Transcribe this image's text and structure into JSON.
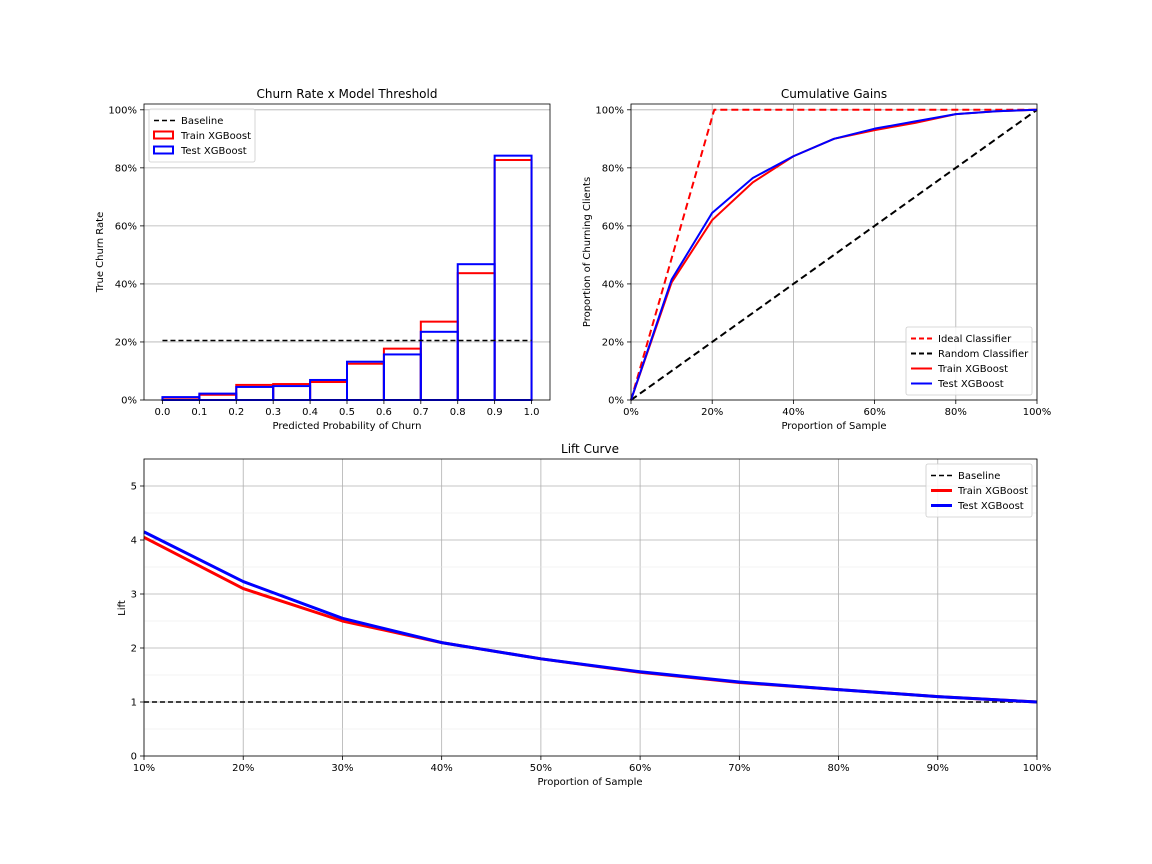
{
  "chart_data": [
    {
      "id": "churn-rate",
      "type": "bar",
      "title": "Churn Rate x Model Threshold",
      "xlabel": "Predicted Probability of Churn",
      "ylabel": "True Churn Rate",
      "xlim": [
        -0.05,
        1.05
      ],
      "ylim": [
        0,
        1.02
      ],
      "x_ticks": [
        0.0,
        0.1,
        0.2,
        0.3,
        0.4,
        0.5,
        0.6,
        0.7,
        0.8,
        0.9,
        1.0
      ],
      "x_tick_labels": [
        "0.0",
        "0.1",
        "0.2",
        "0.3",
        "0.4",
        "0.5",
        "0.6",
        "0.7",
        "0.8",
        "0.9",
        "1.0"
      ],
      "y_ticks": [
        0,
        0.2,
        0.4,
        0.6,
        0.8,
        1.0
      ],
      "y_tick_labels": [
        "0%",
        "20%",
        "40%",
        "60%",
        "80%",
        "100%"
      ],
      "grid": "y",
      "legend_position": "top-left",
      "bin_edges": [
        0.0,
        0.1,
        0.2,
        0.3,
        0.4,
        0.5,
        0.6,
        0.7,
        0.8,
        0.9,
        1.0
      ],
      "baseline": {
        "name": "Baseline",
        "value": 0.205,
        "color": "#000000",
        "style": "dashed"
      },
      "series": [
        {
          "name": "Train XGBoost",
          "color": "#ff0000",
          "values": [
            0.008,
            0.018,
            0.052,
            0.055,
            0.062,
            0.125,
            0.177,
            0.27,
            0.437,
            0.827
          ]
        },
        {
          "name": "Test XGBoost",
          "color": "#0000ff",
          "values": [
            0.01,
            0.022,
            0.045,
            0.048,
            0.069,
            0.132,
            0.157,
            0.235,
            0.468,
            0.842
          ]
        }
      ]
    },
    {
      "id": "cumulative-gains",
      "type": "line",
      "title": "Cumulative Gains",
      "xlabel": "Proportion of Sample",
      "ylabel": "Proportion of Churning Clients",
      "xlim": [
        0,
        1
      ],
      "ylim": [
        0,
        1.02
      ],
      "x_ticks": [
        0,
        0.2,
        0.4,
        0.6,
        0.8,
        1.0
      ],
      "x_tick_labels": [
        "0%",
        "20%",
        "40%",
        "60%",
        "80%",
        "100%"
      ],
      "y_ticks": [
        0,
        0.2,
        0.4,
        0.6,
        0.8,
        1.0
      ],
      "y_tick_labels": [
        "0%",
        "20%",
        "40%",
        "60%",
        "80%",
        "100%"
      ],
      "grid": "both",
      "legend_position": "bottom-right",
      "series": [
        {
          "name": "Ideal Classifier",
          "color": "#ff0000",
          "style": "dashed",
          "x": [
            0,
            0.205,
            1.0
          ],
          "y": [
            0,
            1.0,
            1.0
          ]
        },
        {
          "name": "Random Classifier",
          "color": "#000000",
          "style": "dashed",
          "x": [
            0,
            1.0
          ],
          "y": [
            0,
            1.0
          ]
        },
        {
          "name": "Train XGBoost",
          "color": "#ff0000",
          "style": "solid",
          "x": [
            0,
            0.1,
            0.2,
            0.3,
            0.4,
            0.5,
            0.6,
            0.7,
            0.8,
            0.9,
            1.0
          ],
          "y": [
            0,
            0.405,
            0.62,
            0.75,
            0.84,
            0.9,
            0.93,
            0.955,
            0.985,
            0.995,
            1.0
          ]
        },
        {
          "name": "Test XGBoost",
          "color": "#0000ff",
          "style": "solid",
          "x": [
            0,
            0.1,
            0.2,
            0.3,
            0.4,
            0.5,
            0.6,
            0.7,
            0.8,
            0.9,
            1.0
          ],
          "y": [
            0,
            0.415,
            0.645,
            0.765,
            0.84,
            0.9,
            0.935,
            0.96,
            0.985,
            0.995,
            1.0
          ]
        }
      ]
    },
    {
      "id": "lift-curve",
      "type": "line",
      "title": "Lift Curve",
      "xlabel": "Proportion of Sample",
      "ylabel": "Lift",
      "xlim": [
        0.1,
        1.0
      ],
      "ylim": [
        0,
        5.5
      ],
      "x_ticks": [
        0.1,
        0.2,
        0.3,
        0.4,
        0.5,
        0.6,
        0.7,
        0.8,
        0.9,
        1.0
      ],
      "x_tick_labels": [
        "10%",
        "20%",
        "30%",
        "40%",
        "50%",
        "60%",
        "70%",
        "80%",
        "90%",
        "100%"
      ],
      "y_ticks": [
        0,
        1,
        2,
        3,
        4,
        5
      ],
      "y_tick_labels": [
        "0",
        "1",
        "2",
        "3",
        "4",
        "5"
      ],
      "grid": "both",
      "legend_position": "top-right",
      "series": [
        {
          "name": "Baseline",
          "color": "#000000",
          "style": "dashed",
          "width": 1.5,
          "x": [
            0.1,
            1.0
          ],
          "y": [
            1,
            1
          ]
        },
        {
          "name": "Train XGBoost",
          "color": "#ff0000",
          "style": "solid",
          "width": 3,
          "x": [
            0.1,
            0.2,
            0.3,
            0.4,
            0.5,
            0.6,
            0.7,
            0.8,
            0.9,
            1.0
          ],
          "y": [
            4.05,
            3.1,
            2.5,
            2.1,
            1.8,
            1.55,
            1.36,
            1.23,
            1.1,
            1.0
          ]
        },
        {
          "name": "Test XGBoost",
          "color": "#0000ff",
          "style": "solid",
          "width": 3,
          "x": [
            0.1,
            0.2,
            0.3,
            0.4,
            0.5,
            0.6,
            0.7,
            0.8,
            0.9,
            1.0
          ],
          "y": [
            4.15,
            3.23,
            2.55,
            2.1,
            1.8,
            1.56,
            1.37,
            1.23,
            1.1,
            1.0
          ]
        }
      ]
    }
  ]
}
